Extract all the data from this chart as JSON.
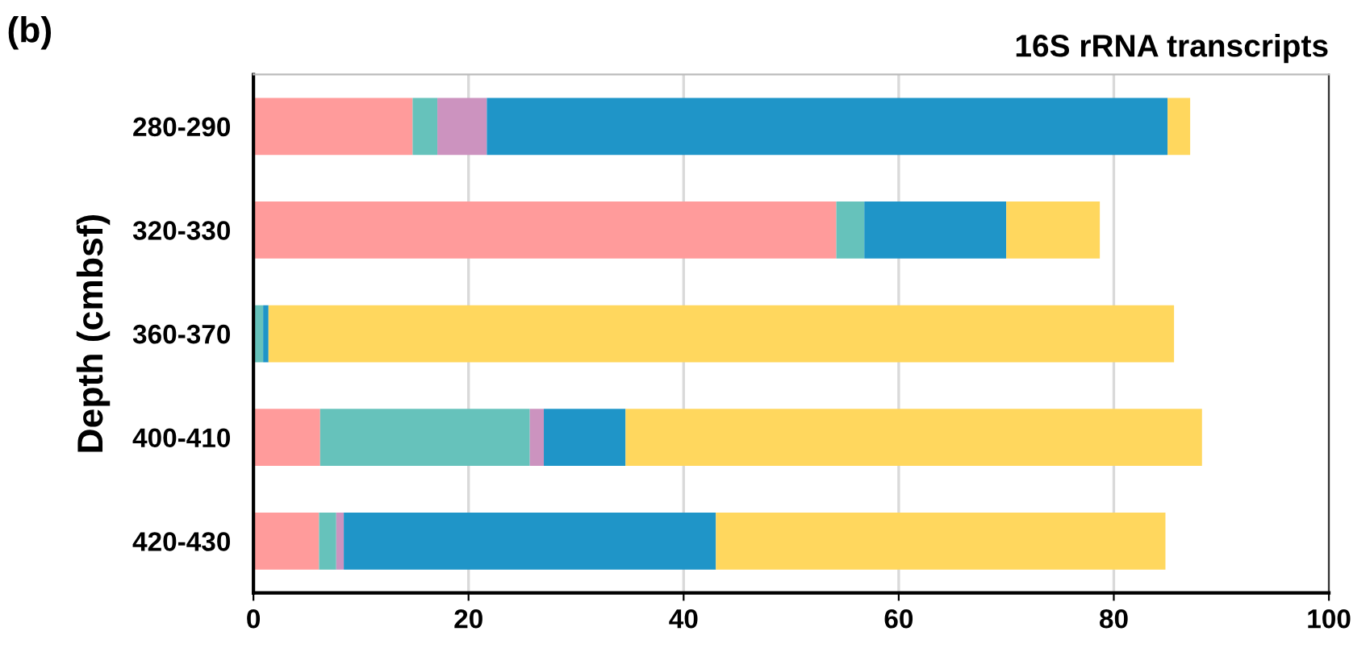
{
  "chart_data": {
    "type": "bar",
    "orientation": "horizontal",
    "stacked": true,
    "title": "16S rRNA transcripts",
    "ylabel": "Depth (cmbsf)",
    "annotations": [
      "(b)"
    ],
    "categories": [
      "280-290",
      "320-330",
      "360-370",
      "400-410",
      "420-430"
    ],
    "series": [
      {
        "color": "#ff9b9b",
        "values": [
          14.8,
          54.2,
          0,
          6.2,
          6.1
        ]
      },
      {
        "color": "#66c2bb",
        "values": [
          2.3,
          2.6,
          0.9,
          19.5,
          1.6
        ]
      },
      {
        "color": "#cc93bf",
        "values": [
          4.6,
          0,
          0,
          1.3,
          0.7
        ]
      },
      {
        "color": "#1f95c8",
        "values": [
          63.3,
          13.2,
          0.5,
          7.6,
          34.6
        ]
      },
      {
        "color": "#ffd75e",
        "values": [
          2.1,
          8.7,
          84.2,
          53.6,
          41.8
        ]
      }
    ],
    "xlim": [
      0,
      100
    ],
    "xticks": [
      0,
      20,
      40,
      60,
      80,
      100
    ],
    "grid": "x",
    "legend": false
  }
}
